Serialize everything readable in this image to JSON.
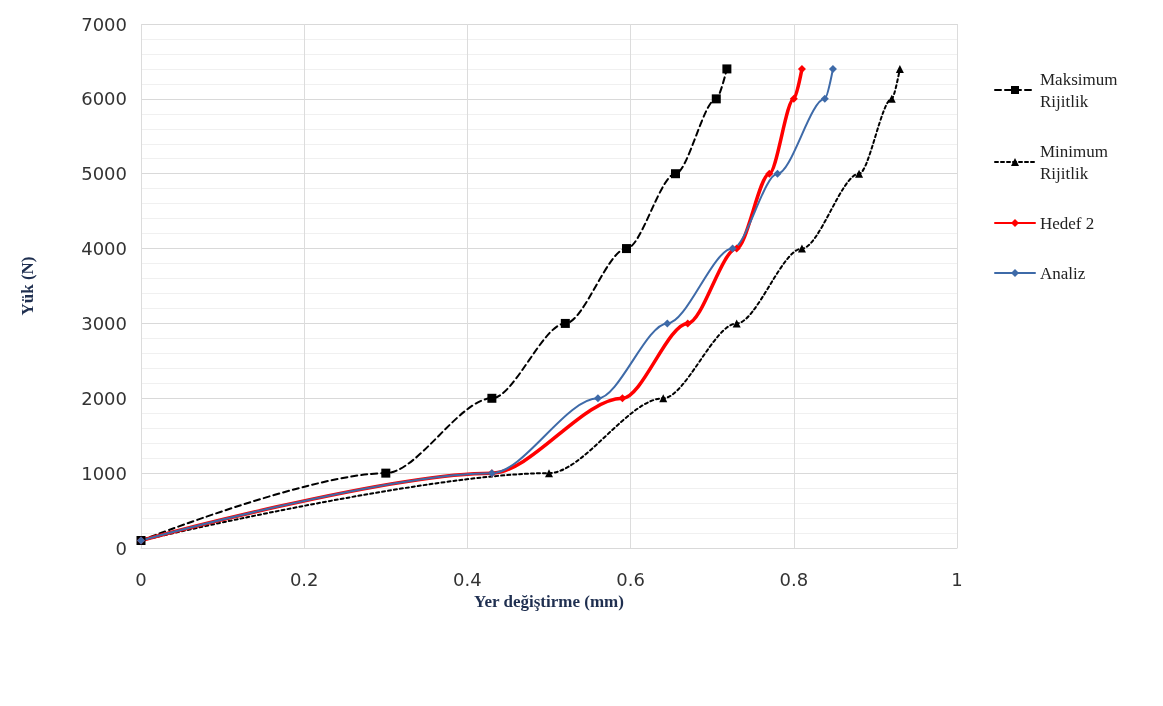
{
  "chart_data": {
    "type": "line",
    "xlabel": "Yer değiştirme (mm)",
    "ylabel": "Yük (N)",
    "xlim": [
      0,
      1
    ],
    "xticks": [
      0,
      0.2,
      0.4,
      0.6,
      0.8,
      1
    ],
    "ylim": [
      0,
      7000
    ],
    "yticks": [
      0,
      1000,
      2000,
      3000,
      4000,
      5000,
      6000,
      7000
    ],
    "grid": true,
    "legend": "right",
    "series": [
      {
        "name": "Maksimum Rijitlik",
        "color": "#000000",
        "marker": "square",
        "line_style": "dashed",
        "x": [
          0,
          0.3,
          0.43,
          0.52,
          0.595,
          0.655,
          0.705,
          0.718
        ],
        "values": [
          100,
          1000,
          2000,
          3000,
          4000,
          5000,
          6000,
          6400
        ]
      },
      {
        "name": "Minimum Rijitlik",
        "color": "#000000",
        "marker": "triangle",
        "line_style": "dotted",
        "x": [
          0,
          0.5,
          0.64,
          0.73,
          0.81,
          0.88,
          0.92,
          0.93
        ],
        "values": [
          100,
          1000,
          2000,
          3000,
          4000,
          5000,
          6000,
          6400
        ]
      },
      {
        "name": "Hedef 2",
        "color": "#ff0000",
        "marker": "diamond",
        "line_style": "solid",
        "x": [
          0,
          0.43,
          0.59,
          0.67,
          0.73,
          0.77,
          0.8,
          0.81
        ],
        "values": [
          100,
          1000,
          2000,
          3000,
          4000,
          5000,
          6000,
          6400
        ]
      },
      {
        "name": "Analiz",
        "color": "#3e6aa8",
        "marker": "diamond",
        "line_style": "solid",
        "x": [
          0,
          0.43,
          0.56,
          0.645,
          0.725,
          0.78,
          0.838,
          0.848
        ],
        "values": [
          100,
          1000,
          2000,
          3000,
          4000,
          5000,
          6000,
          6400
        ]
      }
    ]
  }
}
